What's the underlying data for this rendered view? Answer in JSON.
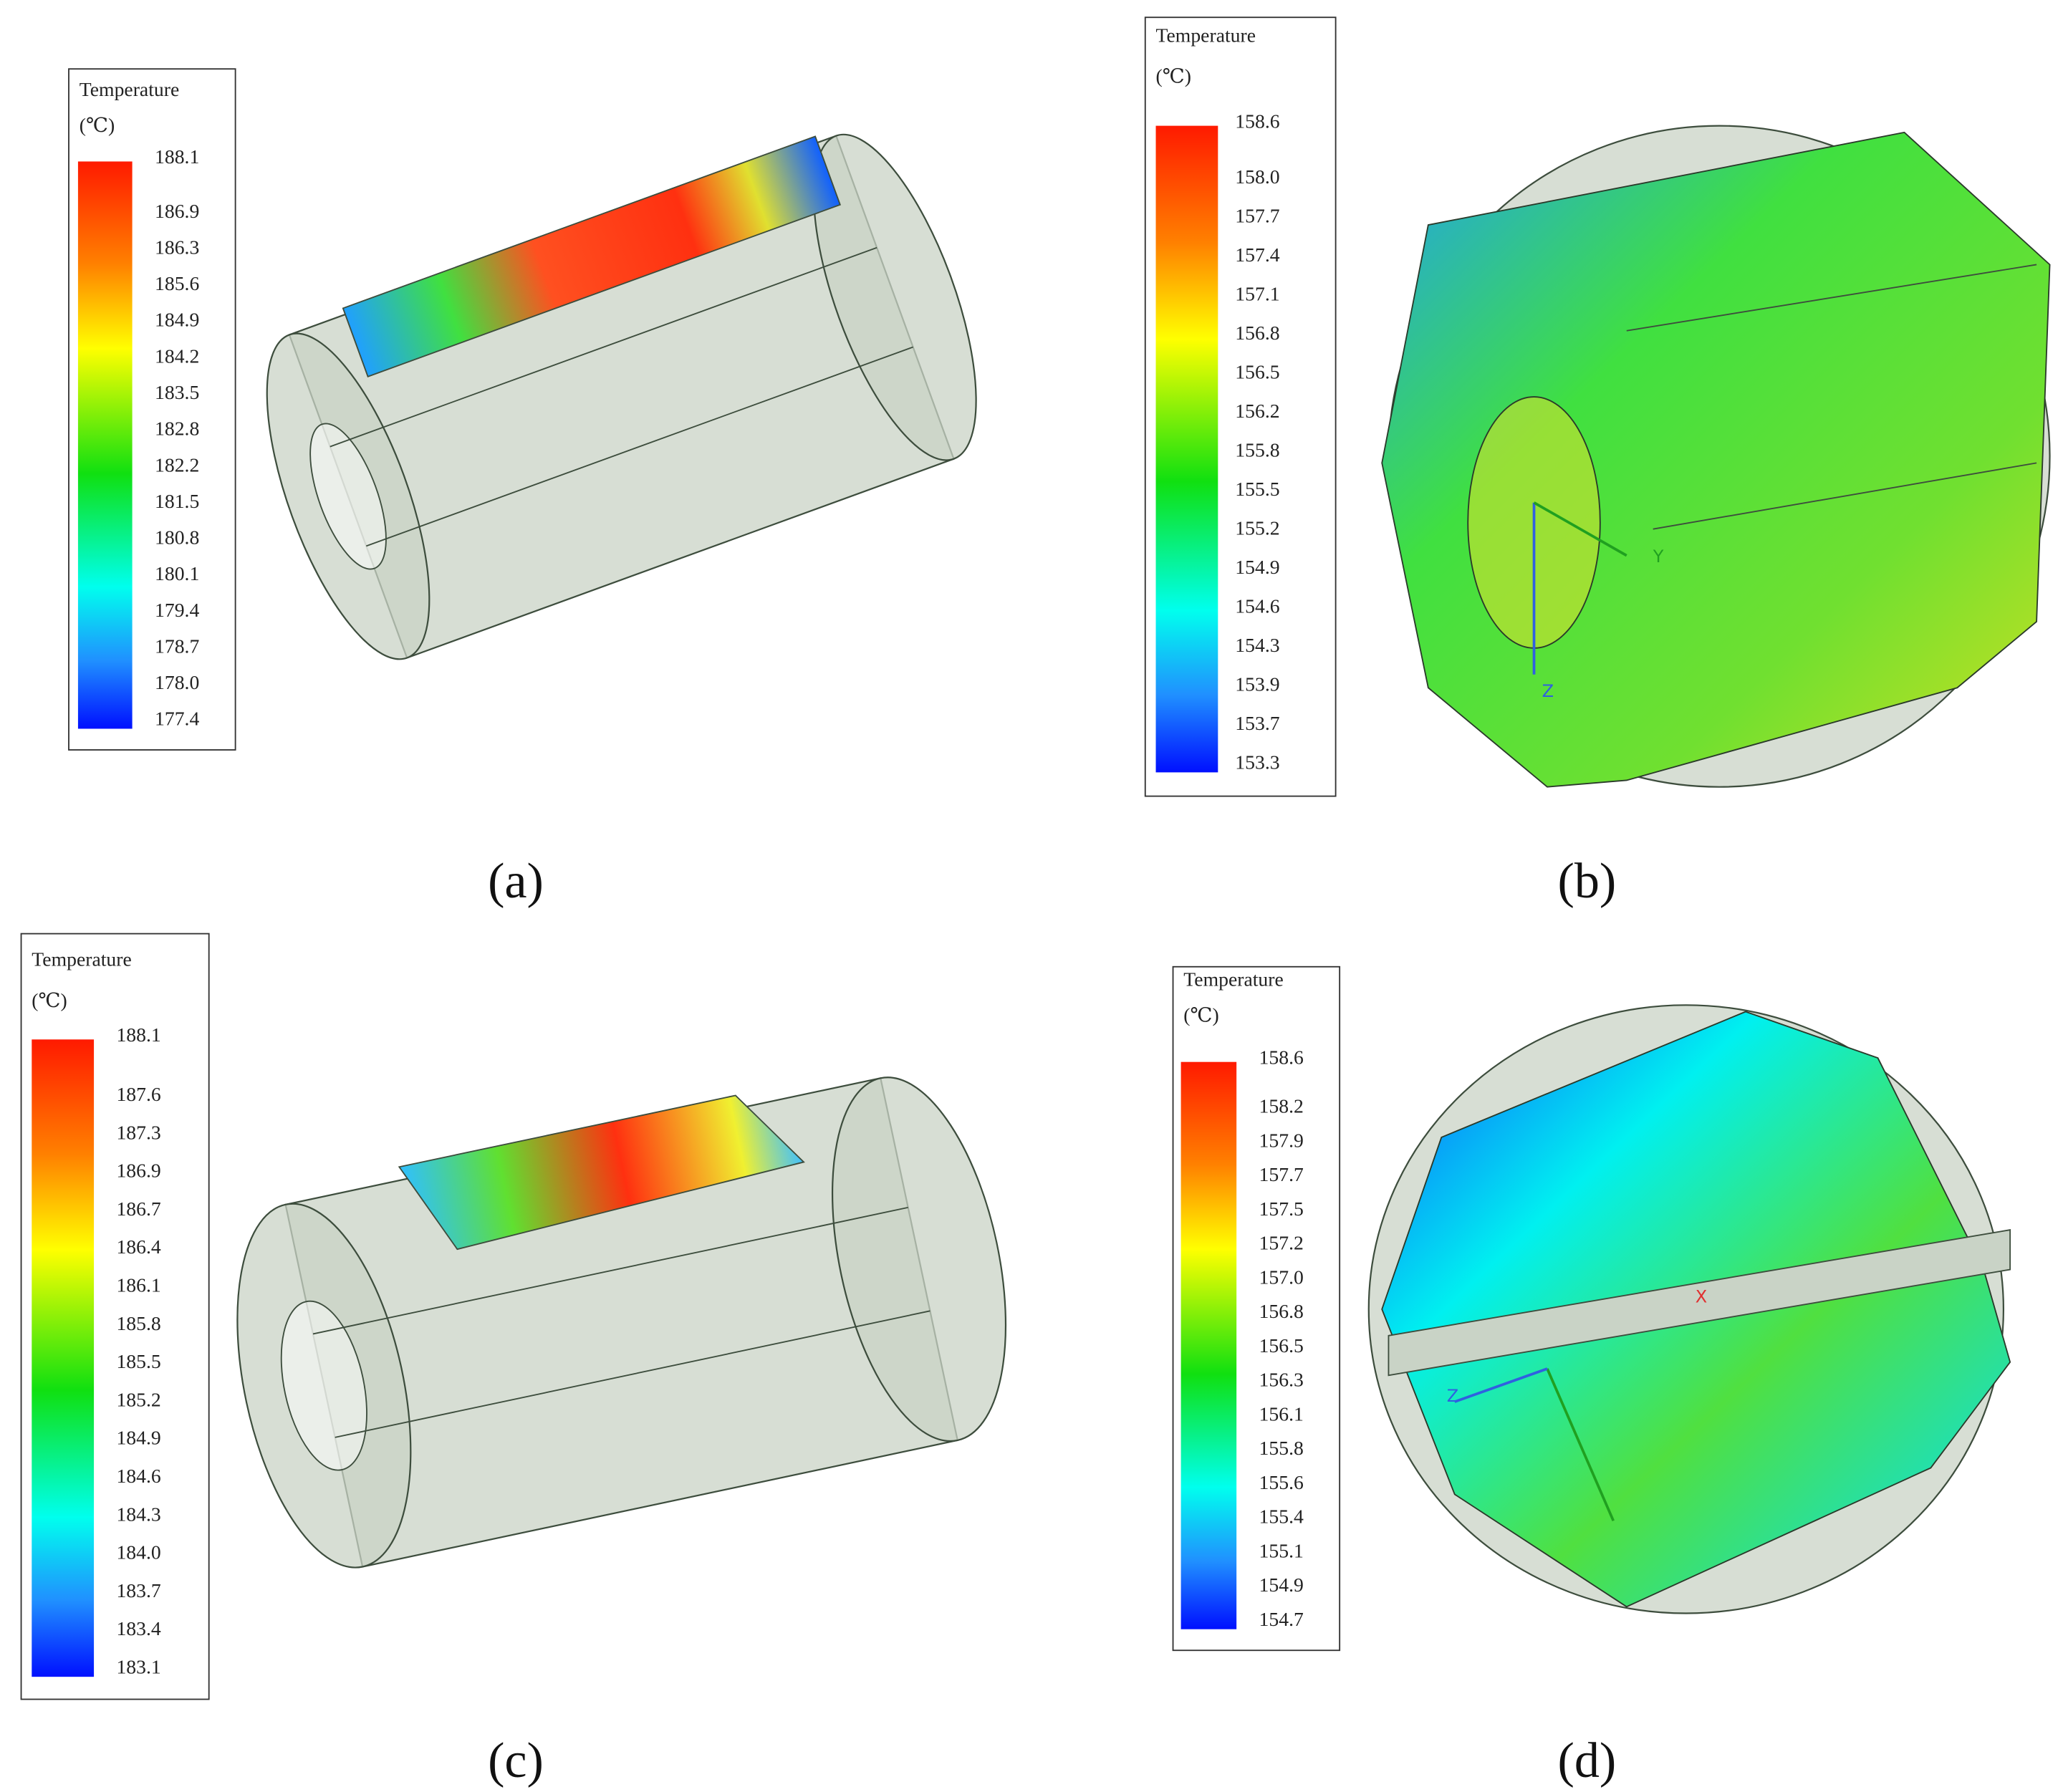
{
  "panels": [
    {
      "caption": "(a)",
      "legend": {
        "title": "Temperature",
        "unit": "(℃)",
        "labels": [
          "188.1",
          "186.9",
          "186.3",
          "185.6",
          "184.9",
          "184.2",
          "183.5",
          "182.8",
          "182.2",
          "181.5",
          "180.8",
          "180.1",
          "179.4",
          "178.7",
          "178.0",
          "177.4"
        ]
      }
    },
    {
      "caption": "(b)",
      "legend": {
        "title": "Temperature",
        "unit": "(℃)",
        "labels": [
          "158.6",
          "158.0",
          "157.7",
          "157.4",
          "157.1",
          "156.8",
          "156.5",
          "156.2",
          "155.8",
          "155.5",
          "155.2",
          "154.9",
          "154.6",
          "154.3",
          "153.9",
          "153.7",
          "153.3"
        ]
      },
      "axis_labels": [
        "Y",
        "Z"
      ]
    },
    {
      "caption": "(c)",
      "legend": {
        "title": "Temperature",
        "unit": "(℃)",
        "labels": [
          "188.1",
          "187.6",
          "187.3",
          "186.9",
          "186.7",
          "186.4",
          "186.1",
          "185.8",
          "185.5",
          "185.2",
          "184.9",
          "184.6",
          "184.3",
          "184.0",
          "183.7",
          "183.4",
          "183.1"
        ]
      }
    },
    {
      "caption": "(d)",
      "legend": {
        "title": "Temperature",
        "unit": "(℃)",
        "labels": [
          "158.6",
          "158.2",
          "157.9",
          "157.7",
          "157.5",
          "157.2",
          "157.0",
          "156.8",
          "156.5",
          "156.3",
          "156.1",
          "155.8",
          "155.6",
          "155.4",
          "155.1",
          "154.9",
          "154.7"
        ]
      },
      "axis_labels": [
        "X",
        "Z"
      ]
    }
  ]
}
